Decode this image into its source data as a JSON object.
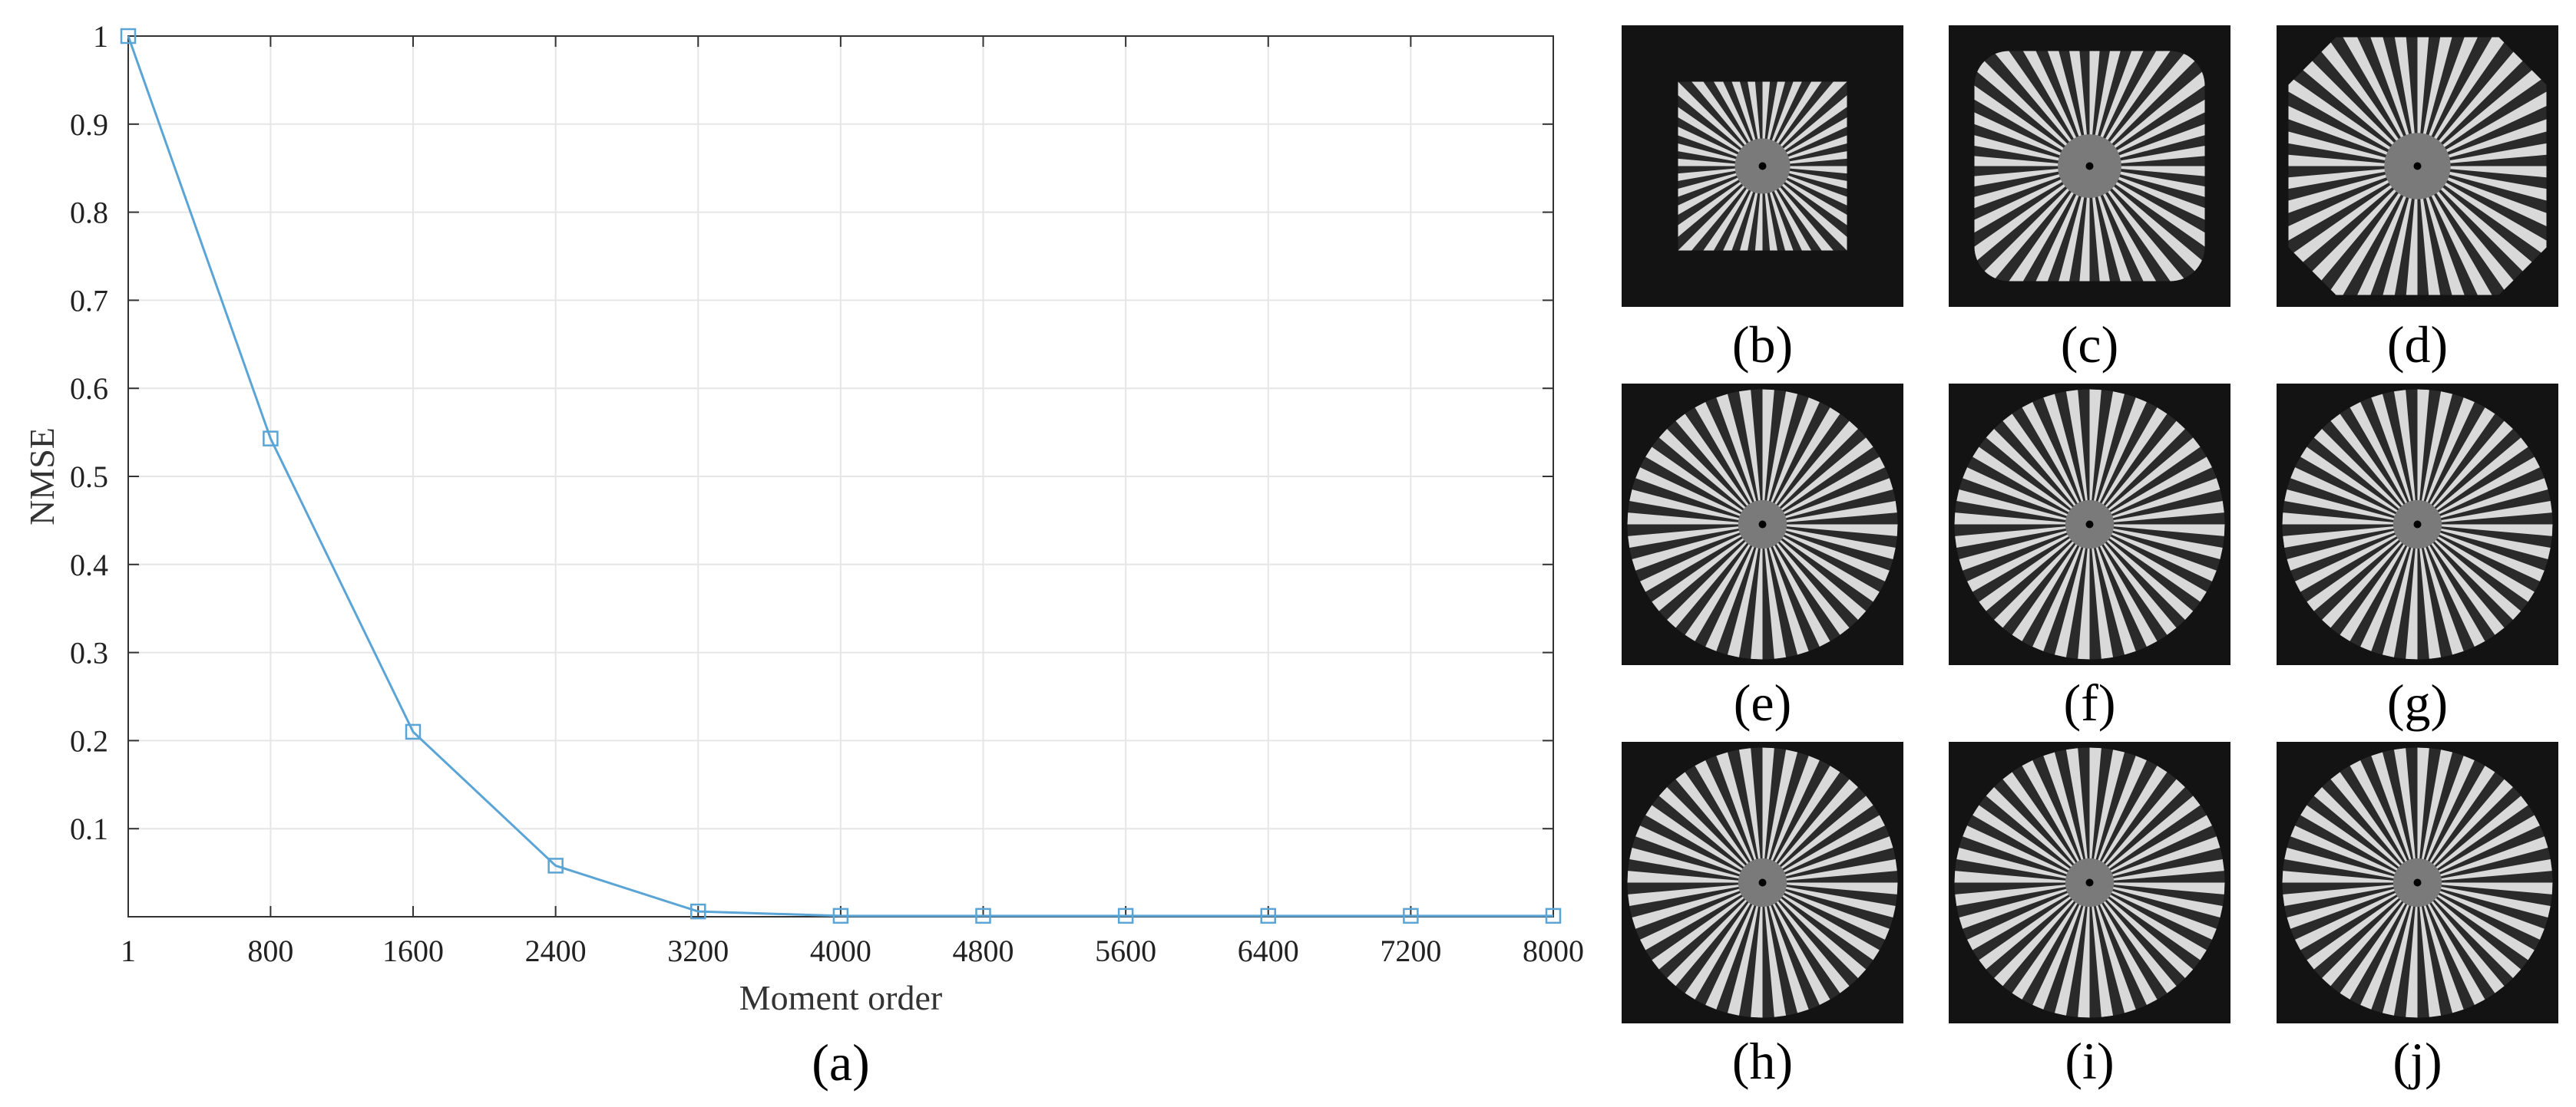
{
  "chart_data": {
    "type": "line",
    "title": "",
    "xlabel": "Moment order",
    "ylabel": "NMSE",
    "x_tick_labels": [
      "1",
      "800",
      "1600",
      "2400",
      "3200",
      "4000",
      "4800",
      "5600",
      "6400",
      "7200",
      "8000"
    ],
    "y_tick_labels": [
      "0.1",
      "0.2",
      "0.3",
      "0.4",
      "0.5",
      "0.6",
      "0.7",
      "0.8",
      "0.9",
      "1"
    ],
    "xlim": [
      1,
      8000
    ],
    "ylim": [
      0,
      1
    ],
    "grid": true,
    "marker": "square",
    "color": "#5aa4d6",
    "series": [
      {
        "x": [
          1,
          800,
          1600,
          2400,
          3200,
          4000,
          4800,
          5600,
          6400,
          7200,
          8000
        ],
        "values": [
          1.0,
          0.543,
          0.21,
          0.058,
          0.006,
          0.001,
          0.001,
          0.001,
          0.001,
          0.001,
          0.001
        ]
      }
    ],
    "caption": "(a)"
  },
  "panels": [
    {
      "caption": "(b)",
      "star": "square-small"
    },
    {
      "caption": "(c)",
      "star": "rounded-square"
    },
    {
      "caption": "(d)",
      "star": "octagon"
    },
    {
      "caption": "(e)",
      "star": "circle"
    },
    {
      "caption": "(f)",
      "star": "circle"
    },
    {
      "caption": "(g)",
      "star": "circle"
    },
    {
      "caption": "(h)",
      "star": "circle"
    },
    {
      "caption": "(i)",
      "star": "circle"
    },
    {
      "caption": "(j)",
      "star": "circle"
    }
  ],
  "colors": {
    "panel_background": "#131313",
    "star_light": "#d9d9d9",
    "star_dark": "#1a1a1a",
    "line": "#5aa4d6",
    "grid": "#e6e6e6"
  }
}
